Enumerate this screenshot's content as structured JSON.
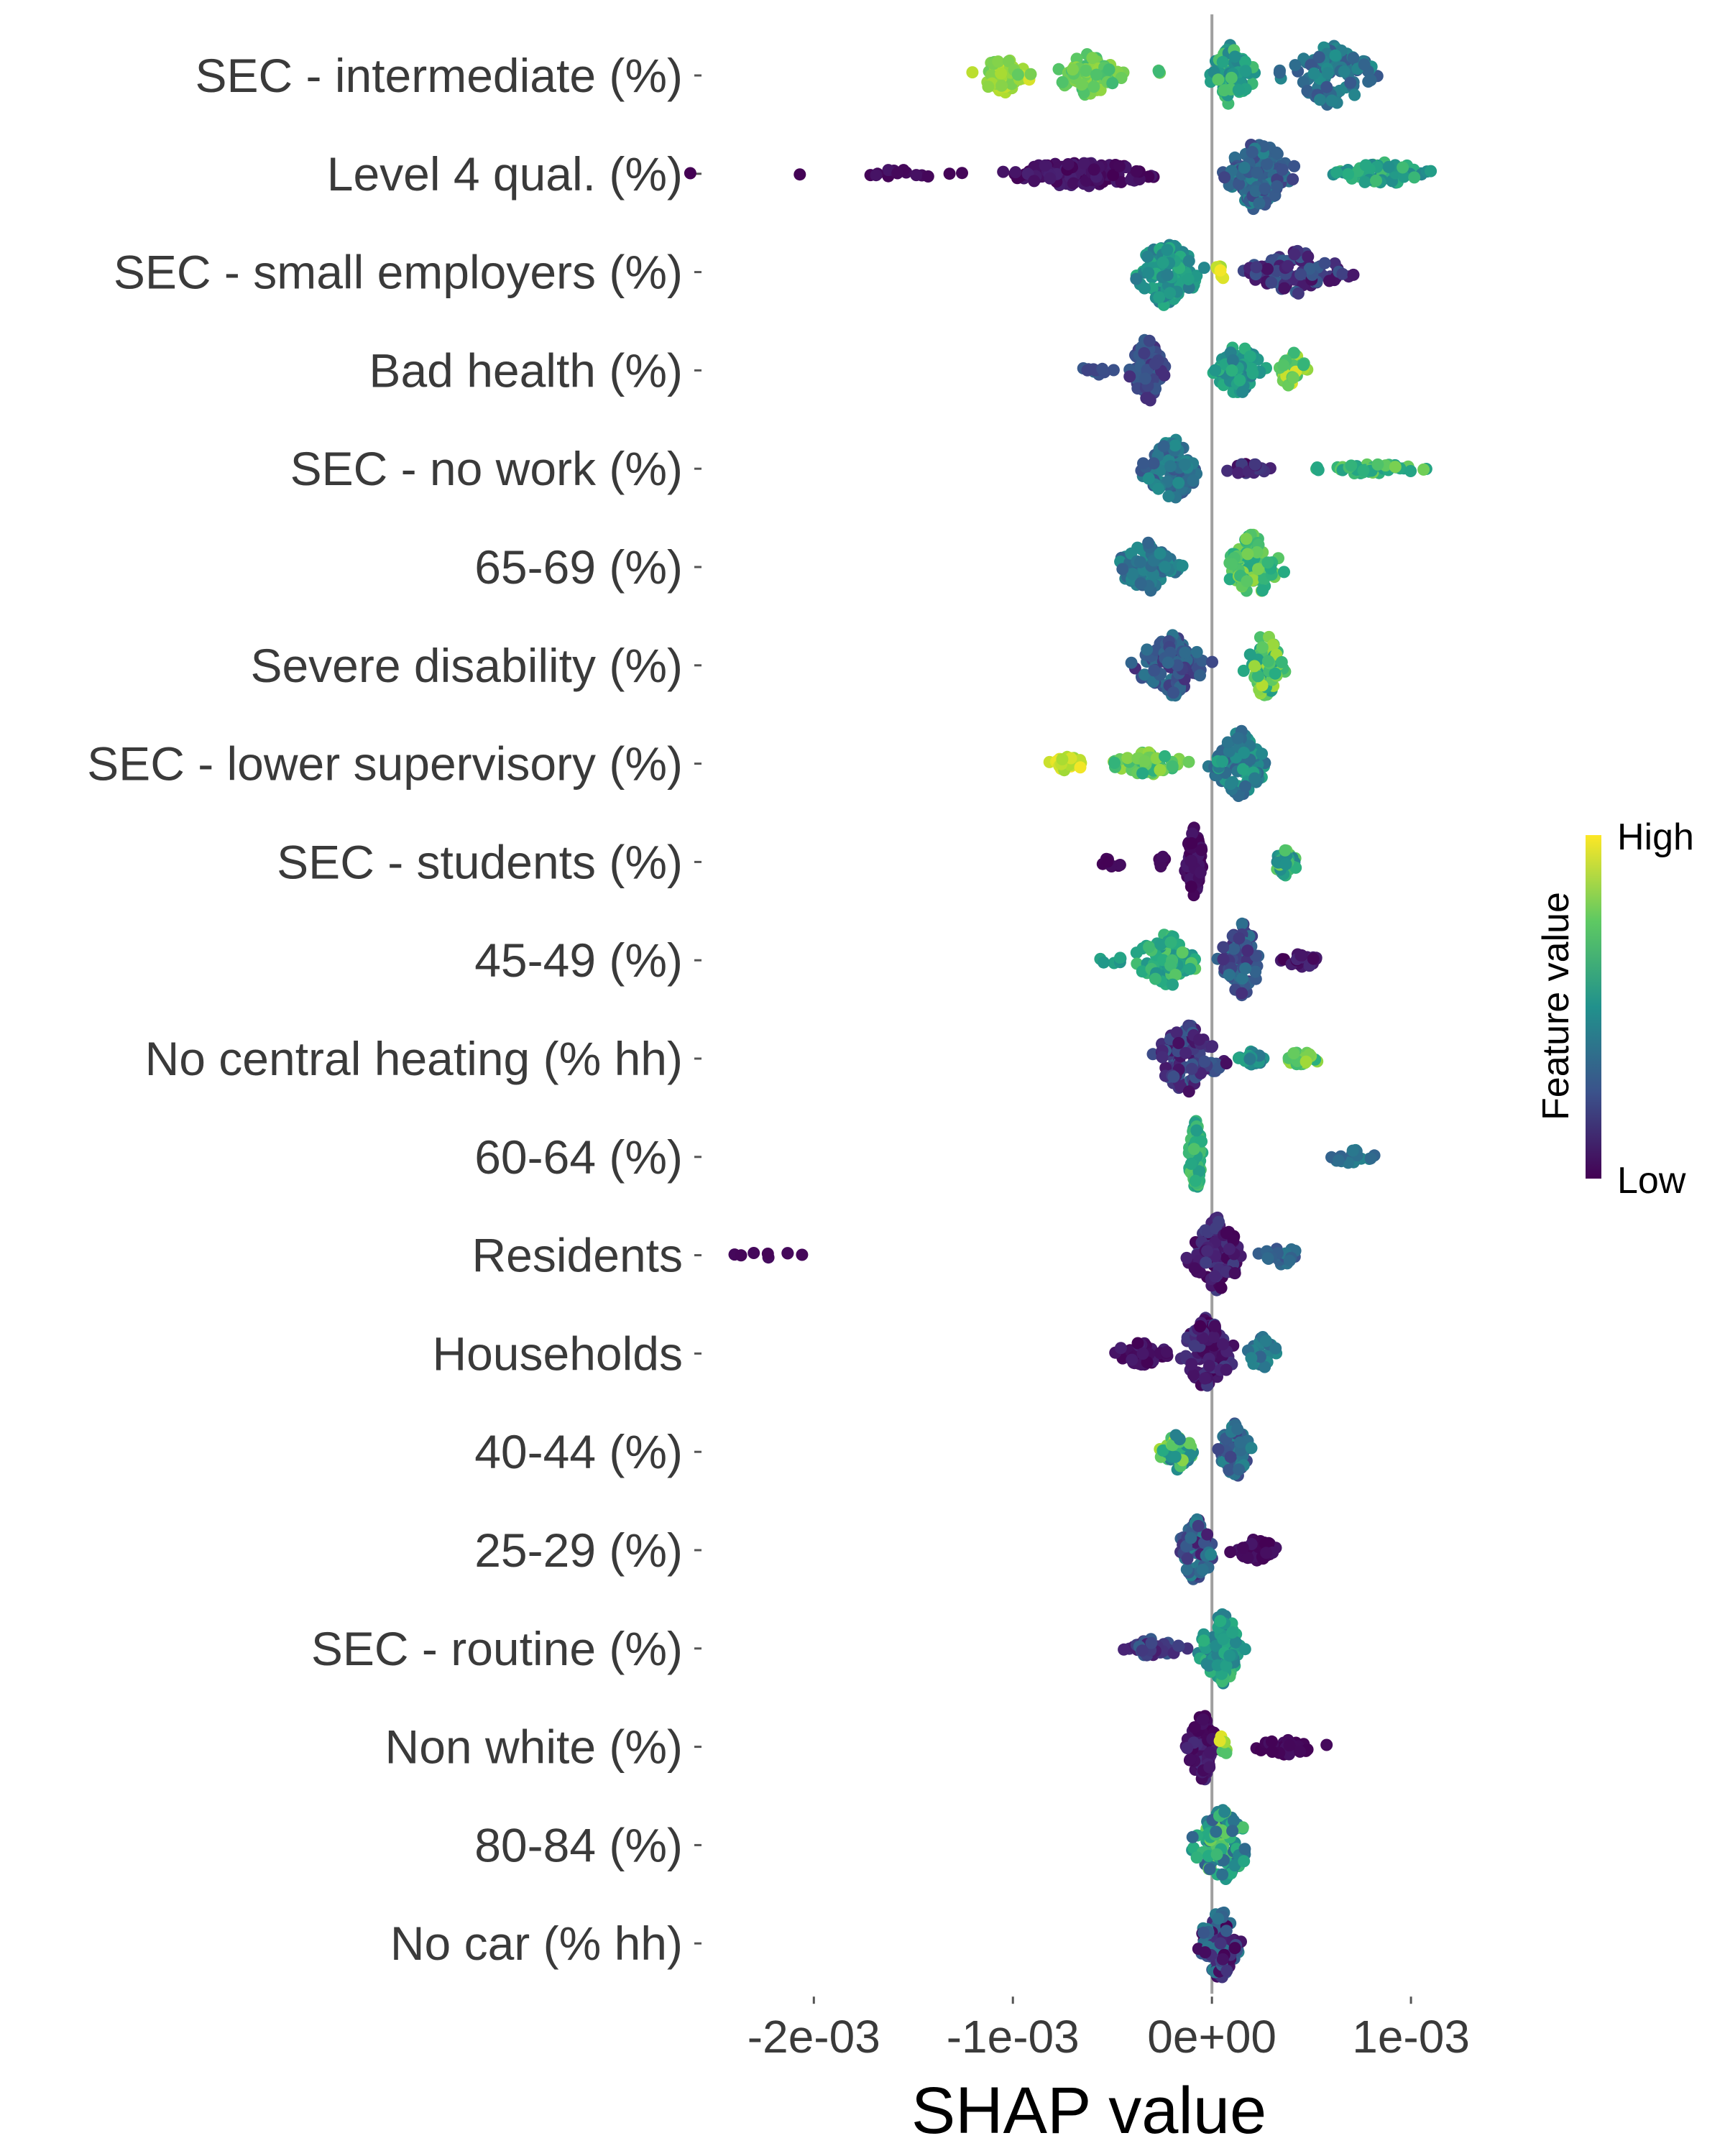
{
  "chart_data": {
    "type": "beeswarm",
    "title": "",
    "xlabel": "SHAP value",
    "ylabel": "",
    "xlim": [
      -0.00255,
      0.00135
    ],
    "x_ticks": [
      {
        "value": -0.002,
        "label": "-2e-03"
      },
      {
        "value": -0.001,
        "label": "-1e-03"
      },
      {
        "value": 0,
        "label": "0e+00"
      },
      {
        "value": 0.001,
        "label": "1e-03"
      }
    ],
    "zero_line": true,
    "grid": false,
    "colormap": "viridis",
    "color_low": "#440154",
    "color_high": "#fde725",
    "legend": {
      "title": "Feature value",
      "high_label": "High",
      "low_label": "Low",
      "placement": "right"
    },
    "features": [
      {
        "name": "SEC - intermediate (%)",
        "clusters": [
          {
            "x": [
              -0.00125,
              -0.00085
            ],
            "n": 70,
            "c": [
              0.75,
              0.95
            ],
            "spread": 0.45
          },
          {
            "x": [
              -0.00085,
              -0.0004
            ],
            "n": 70,
            "c": [
              0.68,
              0.85
            ],
            "spread": 0.55
          },
          {
            "x": [
              -0.0003,
              -0.0002
            ],
            "n": 3,
            "c": [
              0.6,
              0.8
            ],
            "spread": 0.2
          },
          {
            "x": [
              -5e-05,
              0.00025
            ],
            "n": 80,
            "c": [
              0.45,
              0.75
            ],
            "spread": 0.8
          },
          {
            "x": [
              0.0003,
              0.0009
            ],
            "n": 100,
            "c": [
              0.25,
              0.5
            ],
            "spread": 0.8
          }
        ]
      },
      {
        "name": "Level 4 qual. (%)",
        "clusters": [
          {
            "x": [
              -0.00265,
              -0.0026
            ],
            "n": 1,
            "c": [
              0.0,
              0.05
            ],
            "spread": 0.05
          },
          {
            "x": [
              -0.0021,
              -0.00205
            ],
            "n": 1,
            "c": [
              0.0,
              0.05
            ],
            "spread": 0.05
          },
          {
            "x": [
              -0.0019,
              -0.0012
            ],
            "n": 14,
            "c": [
              0.0,
              0.08
            ],
            "spread": 0.12
          },
          {
            "x": [
              -0.0012,
              -0.00012
            ],
            "n": 110,
            "c": [
              0.0,
              0.12
            ],
            "spread": 0.35
          },
          {
            "x": [
              0.0,
              0.00045
            ],
            "n": 150,
            "c": [
              0.2,
              0.45
            ],
            "spread": 0.95
          },
          {
            "x": [
              0.00045,
              0.0013
            ],
            "n": 50,
            "c": [
              0.45,
              0.7
            ],
            "spread": 0.3
          }
        ]
      },
      {
        "name": "SEC - small employers (%)",
        "clusters": [
          {
            "x": [
              -0.00045,
              0.0
            ],
            "n": 110,
            "c": [
              0.4,
              0.65
            ],
            "spread": 0.9
          },
          {
            "x": [
              0.0,
              0.0001
            ],
            "n": 8,
            "c": [
              0.85,
              1.0
            ],
            "spread": 0.3
          },
          {
            "x": [
              0.0001,
              0.00075
            ],
            "n": 90,
            "c": [
              0.05,
              0.3
            ],
            "spread": 0.55
          }
        ]
      },
      {
        "name": "Bad health (%)",
        "clusters": [
          {
            "x": [
              -0.0007,
              -0.00045
            ],
            "n": 10,
            "c": [
              0.2,
              0.35
            ],
            "spread": 0.12
          },
          {
            "x": [
              -0.00045,
              -0.0002
            ],
            "n": 80,
            "c": [
              0.15,
              0.3
            ],
            "spread": 0.85
          },
          {
            "x": [
              -3e-05,
              0.0003
            ],
            "n": 80,
            "c": [
              0.4,
              0.65
            ],
            "spread": 0.7
          },
          {
            "x": [
              0.0003,
              0.0005
            ],
            "n": 40,
            "c": [
              0.65,
              0.95
            ],
            "spread": 0.5
          }
        ]
      },
      {
        "name": "SEC - no work (%)",
        "clusters": [
          {
            "x": [
              -0.0004,
              0.0
            ],
            "n": 90,
            "c": [
              0.25,
              0.5
            ],
            "spread": 0.8
          },
          {
            "x": [
              0.0,
              0.00035
            ],
            "n": 25,
            "c": [
              0.0,
              0.2
            ],
            "spread": 0.15
          },
          {
            "x": [
              0.00045,
              0.00115
            ],
            "n": 45,
            "c": [
              0.55,
              0.8
            ],
            "spread": 0.15
          }
        ]
      },
      {
        "name": "65-69 (%)",
        "clusters": [
          {
            "x": [
              -0.00055,
              -0.0001
            ],
            "n": 70,
            "c": [
              0.3,
              0.5
            ],
            "spread": 0.65
          },
          {
            "x": [
              3e-05,
              0.00038
            ],
            "n": 80,
            "c": [
              0.6,
              0.85
            ],
            "spread": 0.9
          }
        ]
      },
      {
        "name": "Severe disability (%)",
        "clusters": [
          {
            "x": [
              -0.00045,
              5e-05
            ],
            "n": 110,
            "c": [
              0.15,
              0.4
            ],
            "spread": 0.8
          },
          {
            "x": [
              0.00015,
              0.00038
            ],
            "n": 70,
            "c": [
              0.55,
              0.9
            ],
            "spread": 0.9
          }
        ]
      },
      {
        "name": "SEC - lower supervisory (%)",
        "clusters": [
          {
            "x": [
              -0.00085,
              -0.0006
            ],
            "n": 25,
            "c": [
              0.85,
              1.0
            ],
            "spread": 0.2
          },
          {
            "x": [
              -0.0006,
              -5e-05
            ],
            "n": 60,
            "c": [
              0.6,
              0.85
            ],
            "spread": 0.3
          },
          {
            "x": [
              -5e-05,
              0.00033
            ],
            "n": 90,
            "c": [
              0.3,
              0.6
            ],
            "spread": 0.85
          }
        ]
      },
      {
        "name": "SEC - students (%)",
        "clusters": [
          {
            "x": [
              -0.0006,
              -0.0004
            ],
            "n": 8,
            "c": [
              0.0,
              0.05
            ],
            "spread": 0.15
          },
          {
            "x": [
              -0.0003,
              -0.0002
            ],
            "n": 6,
            "c": [
              0.0,
              0.05
            ],
            "spread": 0.15
          },
          {
            "x": [
              -0.00015,
              -3e-05
            ],
            "n": 90,
            "c": [
              0.0,
              0.1
            ],
            "spread": 0.9
          },
          {
            "x": [
              0.00028,
              0.00046
            ],
            "n": 40,
            "c": [
              0.4,
              0.8
            ],
            "spread": 0.35
          }
        ]
      },
      {
        "name": "45-49 (%)",
        "clusters": [
          {
            "x": [
              -0.0006,
              -0.0004
            ],
            "n": 6,
            "c": [
              0.45,
              0.6
            ],
            "spread": 0.1
          },
          {
            "x": [
              -0.00045,
              0.0
            ],
            "n": 70,
            "c": [
              0.5,
              0.75
            ],
            "spread": 0.7
          },
          {
            "x": [
              0.0,
              0.0003
            ],
            "n": 90,
            "c": [
              0.15,
              0.4
            ],
            "spread": 0.95
          },
          {
            "x": [
              0.0003,
              0.0006
            ],
            "n": 25,
            "c": [
              0.0,
              0.15
            ],
            "spread": 0.2
          }
        ]
      },
      {
        "name": "No central heating (% hh)",
        "clusters": [
          {
            "x": [
              -0.00035,
              0.0001
            ],
            "n": 100,
            "c": [
              0.05,
              0.3
            ],
            "spread": 0.9
          },
          {
            "x": [
              0.0001,
              0.0003
            ],
            "n": 25,
            "c": [
              0.4,
              0.6
            ],
            "spread": 0.2
          },
          {
            "x": [
              0.0003,
              0.0006
            ],
            "n": 25,
            "c": [
              0.6,
              0.9
            ],
            "spread": 0.2
          }
        ]
      },
      {
        "name": "60-64 (%)",
        "clusters": [
          {
            "x": [
              -0.00013,
              -3e-05
            ],
            "n": 90,
            "c": [
              0.55,
              0.75
            ],
            "spread": 0.95
          },
          {
            "x": [
              0.0005,
              0.0009
            ],
            "n": 20,
            "c": [
              0.3,
              0.45
            ],
            "spread": 0.2
          }
        ]
      },
      {
        "name": "Residents",
        "clusters": [
          {
            "x": [
              -0.00255,
              -0.00195
            ],
            "n": 8,
            "c": [
              0.0,
              0.05
            ],
            "spread": 0.1
          },
          {
            "x": [
              -0.00015,
              0.0002
            ],
            "n": 120,
            "c": [
              0.0,
              0.2
            ],
            "spread": 0.95
          },
          {
            "x": [
              0.0002,
              0.0005
            ],
            "n": 25,
            "c": [
              0.25,
              0.4
            ],
            "spread": 0.25
          }
        ]
      },
      {
        "name": "Households",
        "clusters": [
          {
            "x": [
              -0.00055,
              -0.00015
            ],
            "n": 50,
            "c": [
              0.0,
              0.12
            ],
            "spread": 0.3
          },
          {
            "x": [
              -0.0002,
              0.00015
            ],
            "n": 120,
            "c": [
              0.0,
              0.2
            ],
            "spread": 0.95
          },
          {
            "x": [
              0.00015,
              0.00035
            ],
            "n": 30,
            "c": [
              0.3,
              0.5
            ],
            "spread": 0.45
          }
        ]
      },
      {
        "name": "40-44 (%)",
        "clusters": [
          {
            "x": [
              -0.0003,
              -5e-05
            ],
            "n": 50,
            "c": [
              0.4,
              0.9
            ],
            "spread": 0.45
          },
          {
            "x": [
              0.0,
              0.00022
            ],
            "n": 70,
            "c": [
              0.2,
              0.45
            ],
            "spread": 0.75
          }
        ]
      },
      {
        "name": "25-29 (%)",
        "clusters": [
          {
            "x": [
              -0.0002,
              5e-05
            ],
            "n": 80,
            "c": [
              0.1,
              0.45
            ],
            "spread": 0.85
          },
          {
            "x": [
              5e-05,
              0.0004
            ],
            "n": 50,
            "c": [
              0.0,
              0.08
            ],
            "spread": 0.3
          }
        ]
      },
      {
        "name": "SEC - routine (%)",
        "clusters": [
          {
            "x": [
              -0.0005,
              -0.0001
            ],
            "n": 45,
            "c": [
              0.1,
              0.3
            ],
            "spread": 0.25
          },
          {
            "x": [
              -0.0001,
              0.0002
            ],
            "n": 90,
            "c": [
              0.4,
              0.7
            ],
            "spread": 0.95
          }
        ]
      },
      {
        "name": "Non white (%)",
        "clusters": [
          {
            "x": [
              -0.00015,
              5e-05
            ],
            "n": 80,
            "c": [
              0.0,
              0.15
            ],
            "spread": 0.95
          },
          {
            "x": [
              0.0,
              0.0001
            ],
            "n": 8,
            "c": [
              0.7,
              1.0
            ],
            "spread": 0.3
          },
          {
            "x": [
              0.0001,
              0.00065
            ],
            "n": 30,
            "c": [
              0.0,
              0.06
            ],
            "spread": 0.2
          }
        ]
      },
      {
        "name": "80-84 (%)",
        "clusters": [
          {
            "x": [
              -0.00015,
              0.00025
            ],
            "n": 110,
            "c": [
              0.3,
              0.8
            ],
            "spread": 0.95
          }
        ]
      },
      {
        "name": "No car (% hh)",
        "clusters": [
          {
            "x": [
              -0.0001,
              0.00018
            ],
            "n": 100,
            "c": [
              0.0,
              0.45
            ],
            "spread": 0.95
          }
        ]
      }
    ]
  }
}
